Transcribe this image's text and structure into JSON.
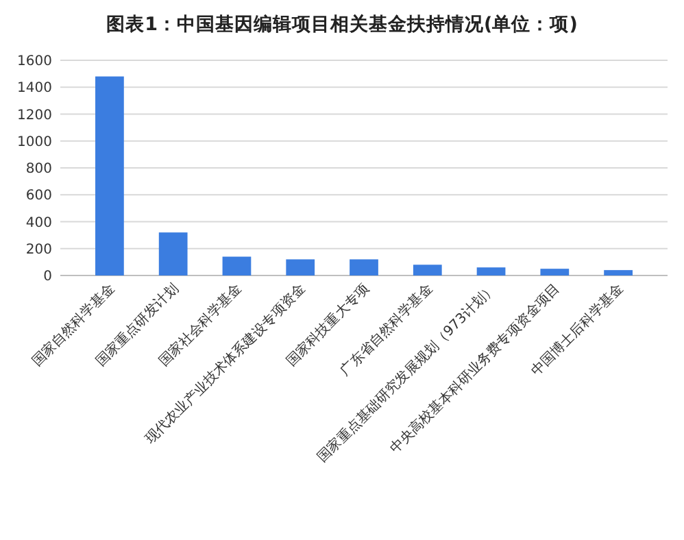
{
  "chart_data": {
    "type": "bar",
    "title": "图表1：中国基因编辑项目相关基金扶持情况(单位：项)",
    "categories": [
      "国家自然科学基金",
      "国家重点研发计划",
      "国家社会科学基金",
      "现代农业产业技术体系建设专项资金",
      "国家科技重大专项",
      "广东省自然科学基金",
      "国家重点基础研究发展规划（973计划）",
      "中央高校基本科研业务费专项资金项目",
      "中国博士后科学基金"
    ],
    "values": [
      1480,
      320,
      140,
      120,
      120,
      80,
      60,
      50,
      40
    ],
    "color": "#3b7de0",
    "ylim": [
      0,
      1600
    ],
    "yticks": [
      0,
      200,
      400,
      600,
      800,
      1000,
      1200,
      1400,
      1600
    ],
    "grid": "y"
  }
}
